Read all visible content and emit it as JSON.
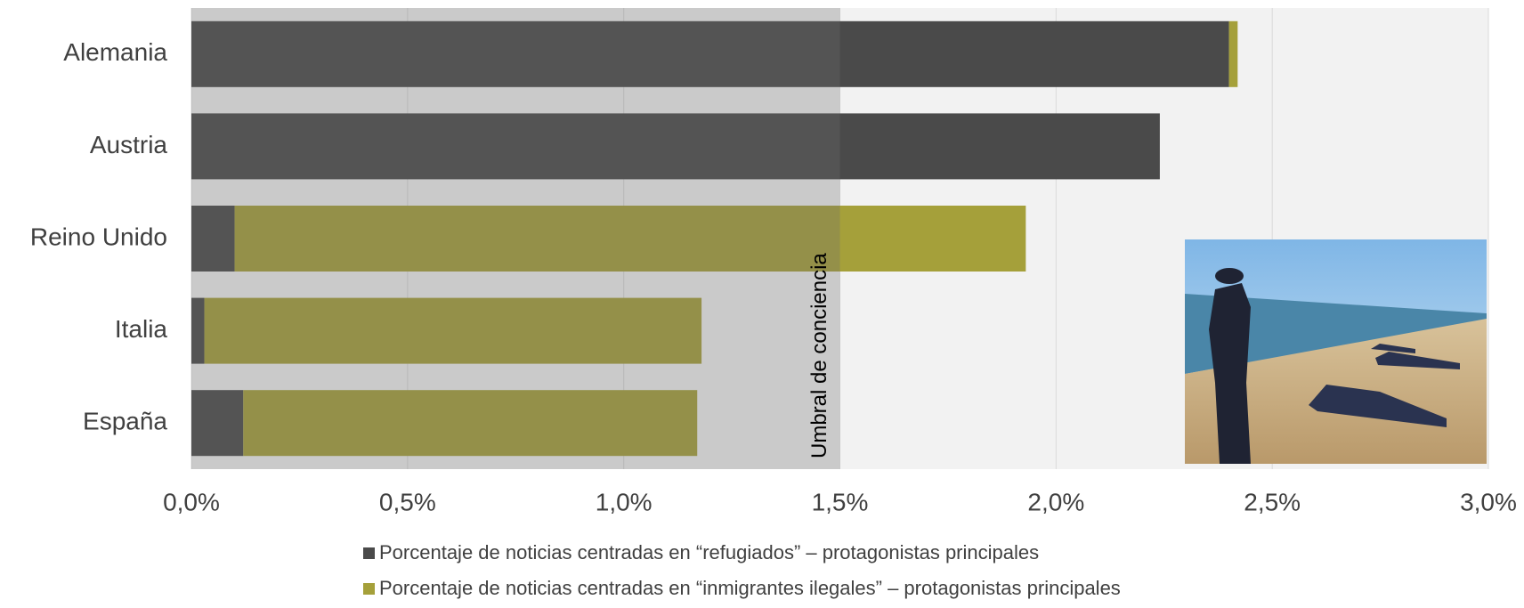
{
  "chart_data": {
    "type": "stacked-barh",
    "categories": [
      "Alemania",
      "Austria",
      "Reino Unido",
      "Italia",
      "España"
    ],
    "series": [
      {
        "name": "Porcentaje de noticias centradas en “refugiados” – protagonistas principales",
        "color": "#4a4a4a",
        "values": [
          2.4,
          2.24,
          0.1,
          0.03,
          0.12
        ]
      },
      {
        "name": "Porcentaje de noticias centradas en “inmigrantes ilegales” – protagonistas principales",
        "color": "#a5a03a",
        "values": [
          0.02,
          0,
          1.83,
          1.15,
          1.05
        ]
      }
    ],
    "xlim": [
      0,
      3
    ],
    "xticks": [
      {
        "value": 0,
        "label": "0,0%"
      },
      {
        "value": 0.5,
        "label": "0,5%"
      },
      {
        "value": 1,
        "label": "1,0%"
      },
      {
        "value": 1.5,
        "label": "1,5%"
      },
      {
        "value": 2,
        "label": "2,0%"
      },
      {
        "value": 2.5,
        "label": "2,5%"
      },
      {
        "value": 3,
        "label": "3,0%"
      }
    ],
    "grid": true,
    "threshold": {
      "value": 1.5,
      "label": "Umbral de conciencia"
    },
    "legend": "bottom"
  }
}
